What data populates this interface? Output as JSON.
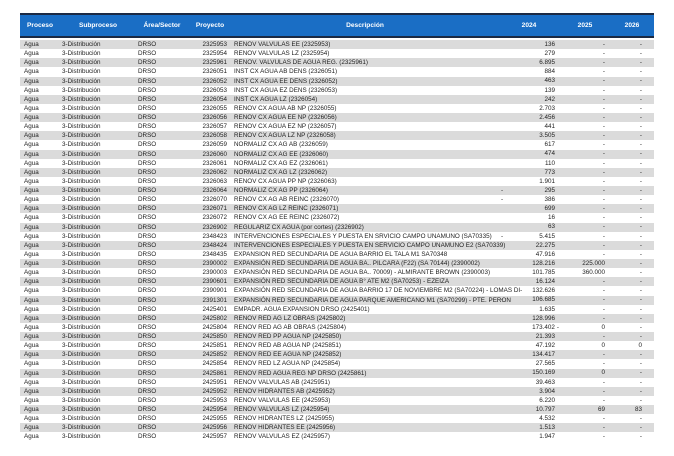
{
  "colors": {
    "header_bg": "#1A6EC5",
    "header_border": "#1B2A44",
    "header_text": "#FFFFFF",
    "band": "#DBDBDB",
    "body_text": "#1D1D1D"
  },
  "table": {
    "columns": [
      {
        "key": "proceso",
        "label": "Proceso"
      },
      {
        "key": "subproceso",
        "label": "Subproceso"
      },
      {
        "key": "area",
        "label": "Área/Sector"
      },
      {
        "key": "proyecto",
        "label": "Proyecto"
      },
      {
        "key": "descripcion",
        "label": "Descripción"
      },
      {
        "key": "y2024",
        "label": "2024"
      },
      {
        "key": "y2025",
        "label": "2025"
      },
      {
        "key": "y2026",
        "label": "2026"
      }
    ],
    "rows": [
      {
        "proceso": "Agua",
        "subproceso": "3-Distribución",
        "area": "DRSO",
        "proyecto": "2325953",
        "descripcion": "RENOV VALVULAS EE (2325953)",
        "y2024": "136",
        "y2025": "-",
        "y2026": "-"
      },
      {
        "proceso": "Agua",
        "subproceso": "3-Distribución",
        "area": "DRSO",
        "proyecto": "2325954",
        "descripcion": "RENOV VALVULAS LZ (2325954)",
        "y2024": "279",
        "y2025": "-",
        "y2026": "-"
      },
      {
        "proceso": "Agua",
        "subproceso": "3-Distribución",
        "area": "DRSO",
        "proyecto": "2325961",
        "descripcion": "RENOV. VALVULAS DE AGUA REG. (2325961)",
        "y2024": "6.895",
        "y2025": "-",
        "y2026": "-"
      },
      {
        "proceso": "Agua",
        "subproceso": "3-Distribución",
        "area": "DRSO",
        "proyecto": "2326051",
        "descripcion": "INST CX AGUA AB DENS (2326051)",
        "y2024": "884",
        "y2025": "-",
        "y2026": "-"
      },
      {
        "proceso": "Agua",
        "subproceso": "3-Distribución",
        "area": "DRSO",
        "proyecto": "2326052",
        "descripcion": "INST CX AGUA EE DENS (2326052)",
        "y2024": "463",
        "y2025": "-",
        "y2026": "-"
      },
      {
        "proceso": "Agua",
        "subproceso": "3-Distribución",
        "area": "DRSO",
        "proyecto": "2326053",
        "descripcion": "INST CX AGUA EZ DENS (2326053)",
        "y2024": "139",
        "y2025": "-",
        "y2026": "-"
      },
      {
        "proceso": "Agua",
        "subproceso": "3-Distribución",
        "area": "DRSO",
        "proyecto": "2326054",
        "descripcion": "INST CX AGUA LZ (2326054)",
        "y2024": "242",
        "y2025": "-",
        "y2026": "-"
      },
      {
        "proceso": "Agua",
        "subproceso": "3-Distribución",
        "area": "DRSO",
        "proyecto": "2326055",
        "descripcion": "RENOV CX AGUA AB NP (2326055)",
        "y2024": "2.703",
        "y2025": "-",
        "y2026": "-"
      },
      {
        "proceso": "Agua",
        "subproceso": "3-Distribución",
        "area": "DRSO",
        "proyecto": "2326056",
        "descripcion": "RENOV CX AGUA EE NP (2326056)",
        "y2024": "2.456",
        "y2025": "-",
        "y2026": "-"
      },
      {
        "proceso": "Agua",
        "subproceso": "3-Distribución",
        "area": "DRSO",
        "proyecto": "2326057",
        "descripcion": "RENOV CX AGUA EZ NP (2326057)",
        "y2024": "441",
        "y2025": "-",
        "y2026": "-"
      },
      {
        "proceso": "Agua",
        "subproceso": "3-Distribución",
        "area": "DRSO",
        "proyecto": "2326058",
        "descripcion": "RENOV CX AGUA LZ NP (2326058)",
        "y2024": "3.505",
        "y2025": "-",
        "y2026": "-"
      },
      {
        "proceso": "Agua",
        "subproceso": "3-Distribución",
        "area": "DRSO",
        "proyecto": "2326059",
        "descripcion": "NORMALIZ CX AG AB (2326059)",
        "y2024": "617",
        "y2025": "-",
        "y2026": "-"
      },
      {
        "proceso": "Agua",
        "subproceso": "3-Distribución",
        "area": "DRSO",
        "proyecto": "2326060",
        "descripcion": "NORMALIZ CX AG EE (2326060)",
        "y2024": "474",
        "y2025": "-",
        "y2026": "-"
      },
      {
        "proceso": "Agua",
        "subproceso": "3-Distribución",
        "area": "DRSO",
        "proyecto": "2326061",
        "descripcion": "NORMALIZ CX AG EZ (2326061)",
        "y2024": "110",
        "y2025": "-",
        "y2026": "-"
      },
      {
        "proceso": "Agua",
        "subproceso": "3-Distribución",
        "area": "DRSO",
        "proyecto": "2326062",
        "descripcion": "NORMALIZ CX AG LZ (2326062)",
        "y2024": "773",
        "y2025": "-",
        "y2026": "-"
      },
      {
        "proceso": "Agua",
        "subproceso": "3-Distribución",
        "area": "DRSO",
        "proyecto": "2326063",
        "descripcion": "RENOV CX AGUA PP NP (2326063)",
        "y2024": "1.901",
        "y2025": "-",
        "y2026": "-"
      },
      {
        "proceso": "Agua",
        "subproceso": "3-Distribución",
        "area": "DRSO",
        "proyecto": "2326064",
        "descripcion": "NORMALIZ CX AG PP (2326064)",
        "y2024": {
          "p": "-",
          "v": "295"
        },
        "y2025": "-",
        "y2026": "-"
      },
      {
        "proceso": "Agua",
        "subproceso": "3-Distribución",
        "area": "DRSO",
        "proyecto": "2326070",
        "descripcion": "RENOV CX AG AB REINC (2326070)",
        "y2024": {
          "p": "-",
          "v": "386"
        },
        "y2025": "-",
        "y2026": "-"
      },
      {
        "proceso": "Agua",
        "subproceso": "3-Distribución",
        "area": "DRSO",
        "proyecto": "2326071",
        "descripcion": "RENOV CX AG LZ REINC (2326071)",
        "y2024": "699",
        "y2025": "-",
        "y2026": "-"
      },
      {
        "proceso": "Agua",
        "subproceso": "3-Distribución",
        "area": "DRSO",
        "proyecto": "2326072",
        "descripcion": "RENOV CX AG EE REINC (2326072)",
        "y2024": "16",
        "y2025": "-",
        "y2026": "-"
      },
      {
        "proceso": "Agua",
        "subproceso": "3-Distribución",
        "area": "DRSO",
        "proyecto": "2326902",
        "descripcion": "REGULARIZ CX AGUA (por cortes) (2326902)",
        "y2024": "63",
        "y2025": "-",
        "y2026": "-"
      },
      {
        "proceso": "Agua",
        "subproceso": "3-Distribución",
        "area": "DRSO",
        "proyecto": "2348423",
        "descripcion": "INTERVENCIONES ESPECIALES Y PUESTA EN SRVICIO CAMPO UNAMUNO (SA70335)",
        "y2024": {
          "p": "-",
          "v": "5.415"
        },
        "y2025": "-",
        "y2026": "-"
      },
      {
        "proceso": "Agua",
        "subproceso": "3-Distribución",
        "area": "DRSO",
        "proyecto": "2348424",
        "descripcion": "INTERVENCIONES ESPECIALES Y PUESTA EN SERVICIO CAMPO UNAMUNO E2 (SA70339)",
        "y2024": "22.275",
        "y2025": "-",
        "y2026": "-"
      },
      {
        "proceso": "Agua",
        "subproceso": "3-Distribución",
        "area": "DRSO",
        "proyecto": "2348435",
        "descripcion": "EXPANSION RED SECUNDARIA DE AGUA BARRIO EL TALA M1 SA70348",
        "y2024": "47.916",
        "y2025": "-",
        "y2026": "-"
      },
      {
        "proceso": "Agua",
        "subproceso": "3-Distribución",
        "area": "DRSO",
        "proyecto": "2390002",
        "descripcion": "EXPANSIÓN RED SECUNDARIA DE AGUA BA.. PILCARA (F22) (SA 70144) (2390002)",
        "y2024": "128.216",
        "y2025": "225.000",
        "y2026": "-"
      },
      {
        "proceso": "Agua",
        "subproceso": "3-Distribución",
        "area": "DRSO",
        "proyecto": "2390003",
        "descripcion": "EXPANSIÓN RED SECUNDARIA DE AGUA BA.. 70009) - ALMIRANTE BROWN (2390003)",
        "y2024": "101.785",
        "y2025": "360.000",
        "y2026": "-"
      },
      {
        "proceso": "Agua",
        "subproceso": "3-Distribución",
        "area": "DRSO",
        "proyecto": "2390601",
        "descripcion": "EXPANSIÓN RED SECUNDARIA DE AGUA B° ATE M2 (SA70253) - EZEIZA",
        "y2024": "16.124",
        "y2025": "-",
        "y2026": "-"
      },
      {
        "proceso": "Agua",
        "subproceso": "3-Distribución",
        "area": "DRSO",
        "proyecto": "2390901",
        "descripcion": "EXPANSIÓN RED SECUNDARIA DE AGUA BARRIO 17 DE NOVIEMBRE M2 (SA70224) - LOMAS DI-",
        "y2024": "132.626",
        "y2025": "-",
        "y2026": "-"
      },
      {
        "proceso": "Agua",
        "subproceso": "3-Distribución",
        "area": "DRSO",
        "proyecto": "2391301",
        "descripcion": "EXPANSIÓN RED SECUNDARIA DE AGUA PARQUE AMERICANO M1 (SA70299) - PTE. PERON",
        "y2024": {
          "p": "-",
          "v": "106.685"
        },
        "y2025": "-",
        "y2026": "-"
      },
      {
        "proceso": "Agua",
        "subproceso": "3-Distribución",
        "area": "DRSO",
        "proyecto": "2425401",
        "descripcion": "EMPADR. AGUA EXPANSION DRSO (2425401)",
        "y2024": "1.635",
        "y2025": "-",
        "y2026": "-"
      },
      {
        "proceso": "Agua",
        "subproceso": "3-Distribución",
        "area": "DRSO",
        "proyecto": "2425802",
        "descripcion": "RENOV RED AG LZ OBRAS (2425802)",
        "y2024": "128.996",
        "y2025": "-",
        "y2026": "-"
      },
      {
        "proceso": "Agua",
        "subproceso": "3-Distribución",
        "area": "DRSO",
        "proyecto": "2425804",
        "descripcion": "RENOV RED AG AB OBRAS (2425804)",
        "y2024": {
          "v": "173.402",
          "s": "-"
        },
        "y2025": "0",
        "y2026": "-"
      },
      {
        "proceso": "Agua",
        "subproceso": "3-Distribución",
        "area": "DRSO",
        "proyecto": "2425850",
        "descripcion": "RENOV RED PP AGUA NP (2425850)",
        "y2024": "21.393",
        "y2025": "-",
        "y2026": "-"
      },
      {
        "proceso": "Agua",
        "subproceso": "3-Distribución",
        "area": "DRSO",
        "proyecto": "2425851",
        "descripcion": "RENOV RED AB AGUA NP (2425851)",
        "y2024": "47.192",
        "y2025": "0",
        "y2026": "0"
      },
      {
        "proceso": "Agua",
        "subproceso": "3-Distribución",
        "area": "DRSO",
        "proyecto": "2425852",
        "descripcion": "RENOV RED EE AGUA NP (2425852)",
        "y2024": "134.417",
        "y2025": "-",
        "y2026": "-"
      },
      {
        "proceso": "Agua",
        "subproceso": "3-Distribución",
        "area": "DRSO",
        "proyecto": "2425854",
        "descripcion": "RENOV RED LZ AGUA NP (2425854)",
        "y2024": "27.565",
        "y2025": "-",
        "y2026": "-"
      },
      {
        "proceso": "Agua",
        "subproceso": "3-Distribución",
        "area": "DRSO",
        "proyecto": "2425861",
        "descripcion": "RENOV RED AGUA REG NP DRSO (2425861)",
        "y2024": "150.169",
        "y2025": "0",
        "y2026": "-"
      },
      {
        "proceso": "Agua",
        "subproceso": "3-Distribución",
        "area": "DRSO",
        "proyecto": "2425951",
        "descripcion": "RENOV VALVULAS AB (2425951)",
        "y2024": "39.463",
        "y2025": "-",
        "y2026": "-"
      },
      {
        "proceso": "Agua",
        "subproceso": "3-Distribución",
        "area": "DRSO",
        "proyecto": "2425952",
        "descripcion": "RENOV HIDRANTES AB (2425952)",
        "y2024": "3.904",
        "y2025": "-",
        "y2026": "-"
      },
      {
        "proceso": "Agua",
        "subproceso": "3-Distribución",
        "area": "DRSO",
        "proyecto": "2425953",
        "descripcion": "RENOV VALVULAS EE (2425953)",
        "y2024": "6.220",
        "y2025": "-",
        "y2026": "-"
      },
      {
        "proceso": "Agua",
        "subproceso": "3-Distribución",
        "area": "DRSO",
        "proyecto": "2425954",
        "descripcion": "RENOV VALVULAS LZ (2425954)",
        "y2024": "10.797",
        "y2025": "69",
        "y2026": "83"
      },
      {
        "proceso": "Agua",
        "subproceso": "3-Distribución",
        "area": "DRSO",
        "proyecto": "2425955",
        "descripcion": "RENOV HIDRANTES LZ (2425955)",
        "y2024": "4.532",
        "y2025": "-",
        "y2026": "-"
      },
      {
        "proceso": "Agua",
        "subproceso": "3-Distribución",
        "area": "DRSO",
        "proyecto": "2425956",
        "descripcion": "RENOV HIDRANTES EE (2425956)",
        "y2024": "1.513",
        "y2025": "-",
        "y2026": "-"
      },
      {
        "proceso": "Agua",
        "subproceso": "3-Distribución",
        "area": "DRSO",
        "proyecto": "2425957",
        "descripcion": "RENOV VALVULAS EZ (2425957)",
        "y2024": "1.947",
        "y2025": "-",
        "y2026": "-"
      }
    ]
  }
}
